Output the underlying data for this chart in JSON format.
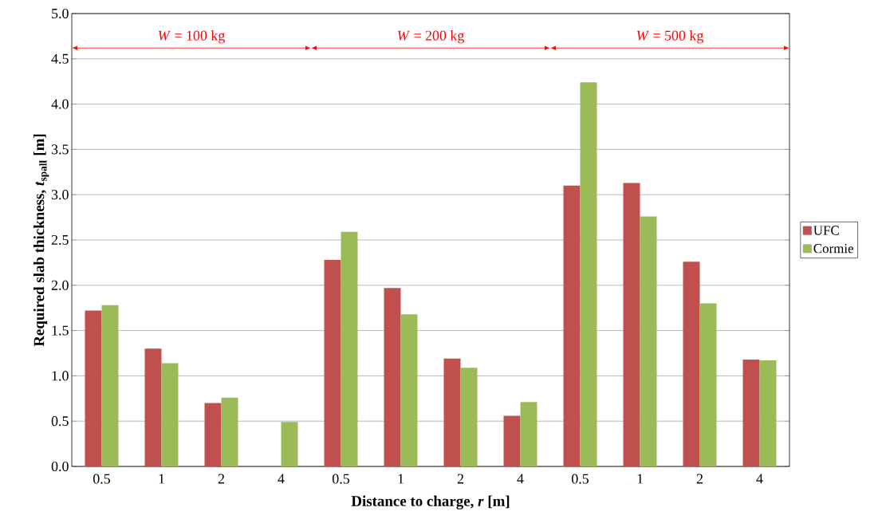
{
  "chart_data": {
    "type": "bar",
    "xlabel": "Distance to charge, *r* [m]",
    "ylabel": "Required slab thickness, *t*$_{spall}$ [m]",
    "categories": [
      "0.5",
      "1",
      "2",
      "4",
      "0.5",
      "1",
      "2",
      "4",
      "0.5",
      "1",
      "2",
      "4"
    ],
    "series": [
      {
        "name": "UFC",
        "color": "#c0504d",
        "values": [
          1.72,
          1.3,
          0.7,
          null,
          2.28,
          1.97,
          1.19,
          0.56,
          3.1,
          3.13,
          2.26,
          1.18
        ]
      },
      {
        "name": "Cormie",
        "color": "#9bbb59",
        "values": [
          1.78,
          1.14,
          0.76,
          0.49,
          2.59,
          1.68,
          1.09,
          0.71,
          4.24,
          2.76,
          1.8,
          1.17
        ]
      }
    ],
    "annotations": [
      "*W* = 100 kg",
      "*W* = 200 kg",
      "*W* = 500 kg"
    ],
    "ylim": [
      0,
      5
    ],
    "yticks": [
      {
        "value": 0,
        "label": "0.0"
      },
      {
        "value": 0.5,
        "label": "0.5"
      },
      {
        "value": 1,
        "label": "1.0"
      },
      {
        "value": 1.5,
        "label": "1.5"
      },
      {
        "value": 2,
        "label": "2.0"
      },
      {
        "value": 2.5,
        "label": "2.5"
      },
      {
        "value": 3,
        "label": "3.0"
      },
      {
        "value": 3.5,
        "label": "3.5"
      },
      {
        "value": 4,
        "label": "4.0"
      },
      {
        "value": 4.5,
        "label": "4.5"
      },
      {
        "value": 5,
        "label": "5.0"
      }
    ],
    "grid": "y",
    "legend": "right"
  }
}
